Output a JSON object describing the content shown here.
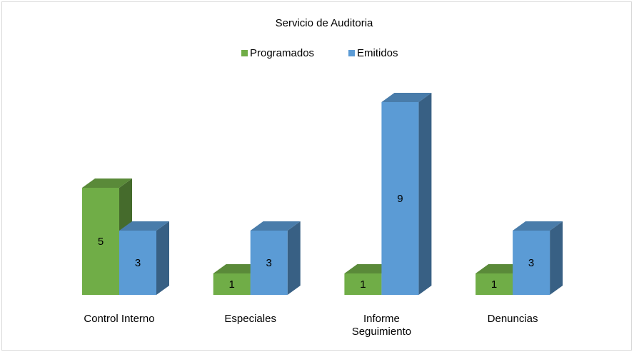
{
  "chart_data": {
    "type": "bar3d",
    "title": "Servicio de Auditoria",
    "categories": [
      "Control Interno",
      "Especiales",
      "Informe Seguimiento",
      "Denuncias"
    ],
    "series": [
      {
        "name": "Programados",
        "color": "#70ad47",
        "values": [
          5,
          1,
          1,
          1
        ]
      },
      {
        "name": "Emitidos",
        "color": "#5b9bd5",
        "values": [
          3,
          3,
          9,
          3
        ]
      }
    ],
    "legend": "top"
  }
}
